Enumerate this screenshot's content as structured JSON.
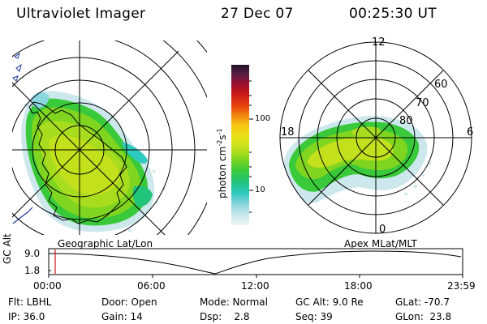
{
  "header": {
    "instrument": "Ultraviolet Imager",
    "date": "27 Dec 07",
    "time": "00:25:30 UT"
  },
  "left_map": {
    "label": "Geographic Lat/Lon"
  },
  "right_map": {
    "label": "Apex  MLat/MLT",
    "mlt_labels": {
      "top": "12",
      "left": "18",
      "right": "6",
      "bottom": "0"
    },
    "lat_labels": [
      "60",
      "70",
      "80"
    ]
  },
  "colorbar": {
    "unit": "photon cm",
    "unit_sup1": "-2",
    "unit_s": "s",
    "unit_sup2": "-1",
    "ticks": [
      "100",
      "10"
    ],
    "colors": [
      "#eef4f4",
      "#cde8ec",
      "#8ad6de",
      "#2ec9c0",
      "#22c47a",
      "#39c93a",
      "#7fd51f",
      "#c3e01c",
      "#e8e21a",
      "#f6c817",
      "#f38a10",
      "#e7460e",
      "#cf1b17",
      "#9a0f2f",
      "#5c1e44",
      "#1d1226"
    ]
  },
  "timeline": {
    "axis_label": "GC Alt",
    "y_ticks": [
      "9.0",
      "1.8"
    ],
    "x_ticks": [
      "00:00",
      "06:00",
      "12:00",
      "18:00",
      "23:59"
    ]
  },
  "status": {
    "flt": "Flt: LBHL",
    "ip": "IP: 36.0",
    "door": "Door: Open",
    "gain": "Gain: 14",
    "mode": "Mode: Normal",
    "dsp": "Dsp:    2.8",
    "gcalt": "GC Alt: 9.0 Re",
    "seq": "Seq: 39",
    "glat": "GLat: -70.7",
    "glon": "GLon:  23.8"
  },
  "colors": {
    "aurora_green": "#7fd51f",
    "aurora_yellow": "#c3e01c",
    "aurora_cyan": "#8ad6de",
    "marker_red": "#d01818",
    "coast_blue": "#2038a0"
  }
}
